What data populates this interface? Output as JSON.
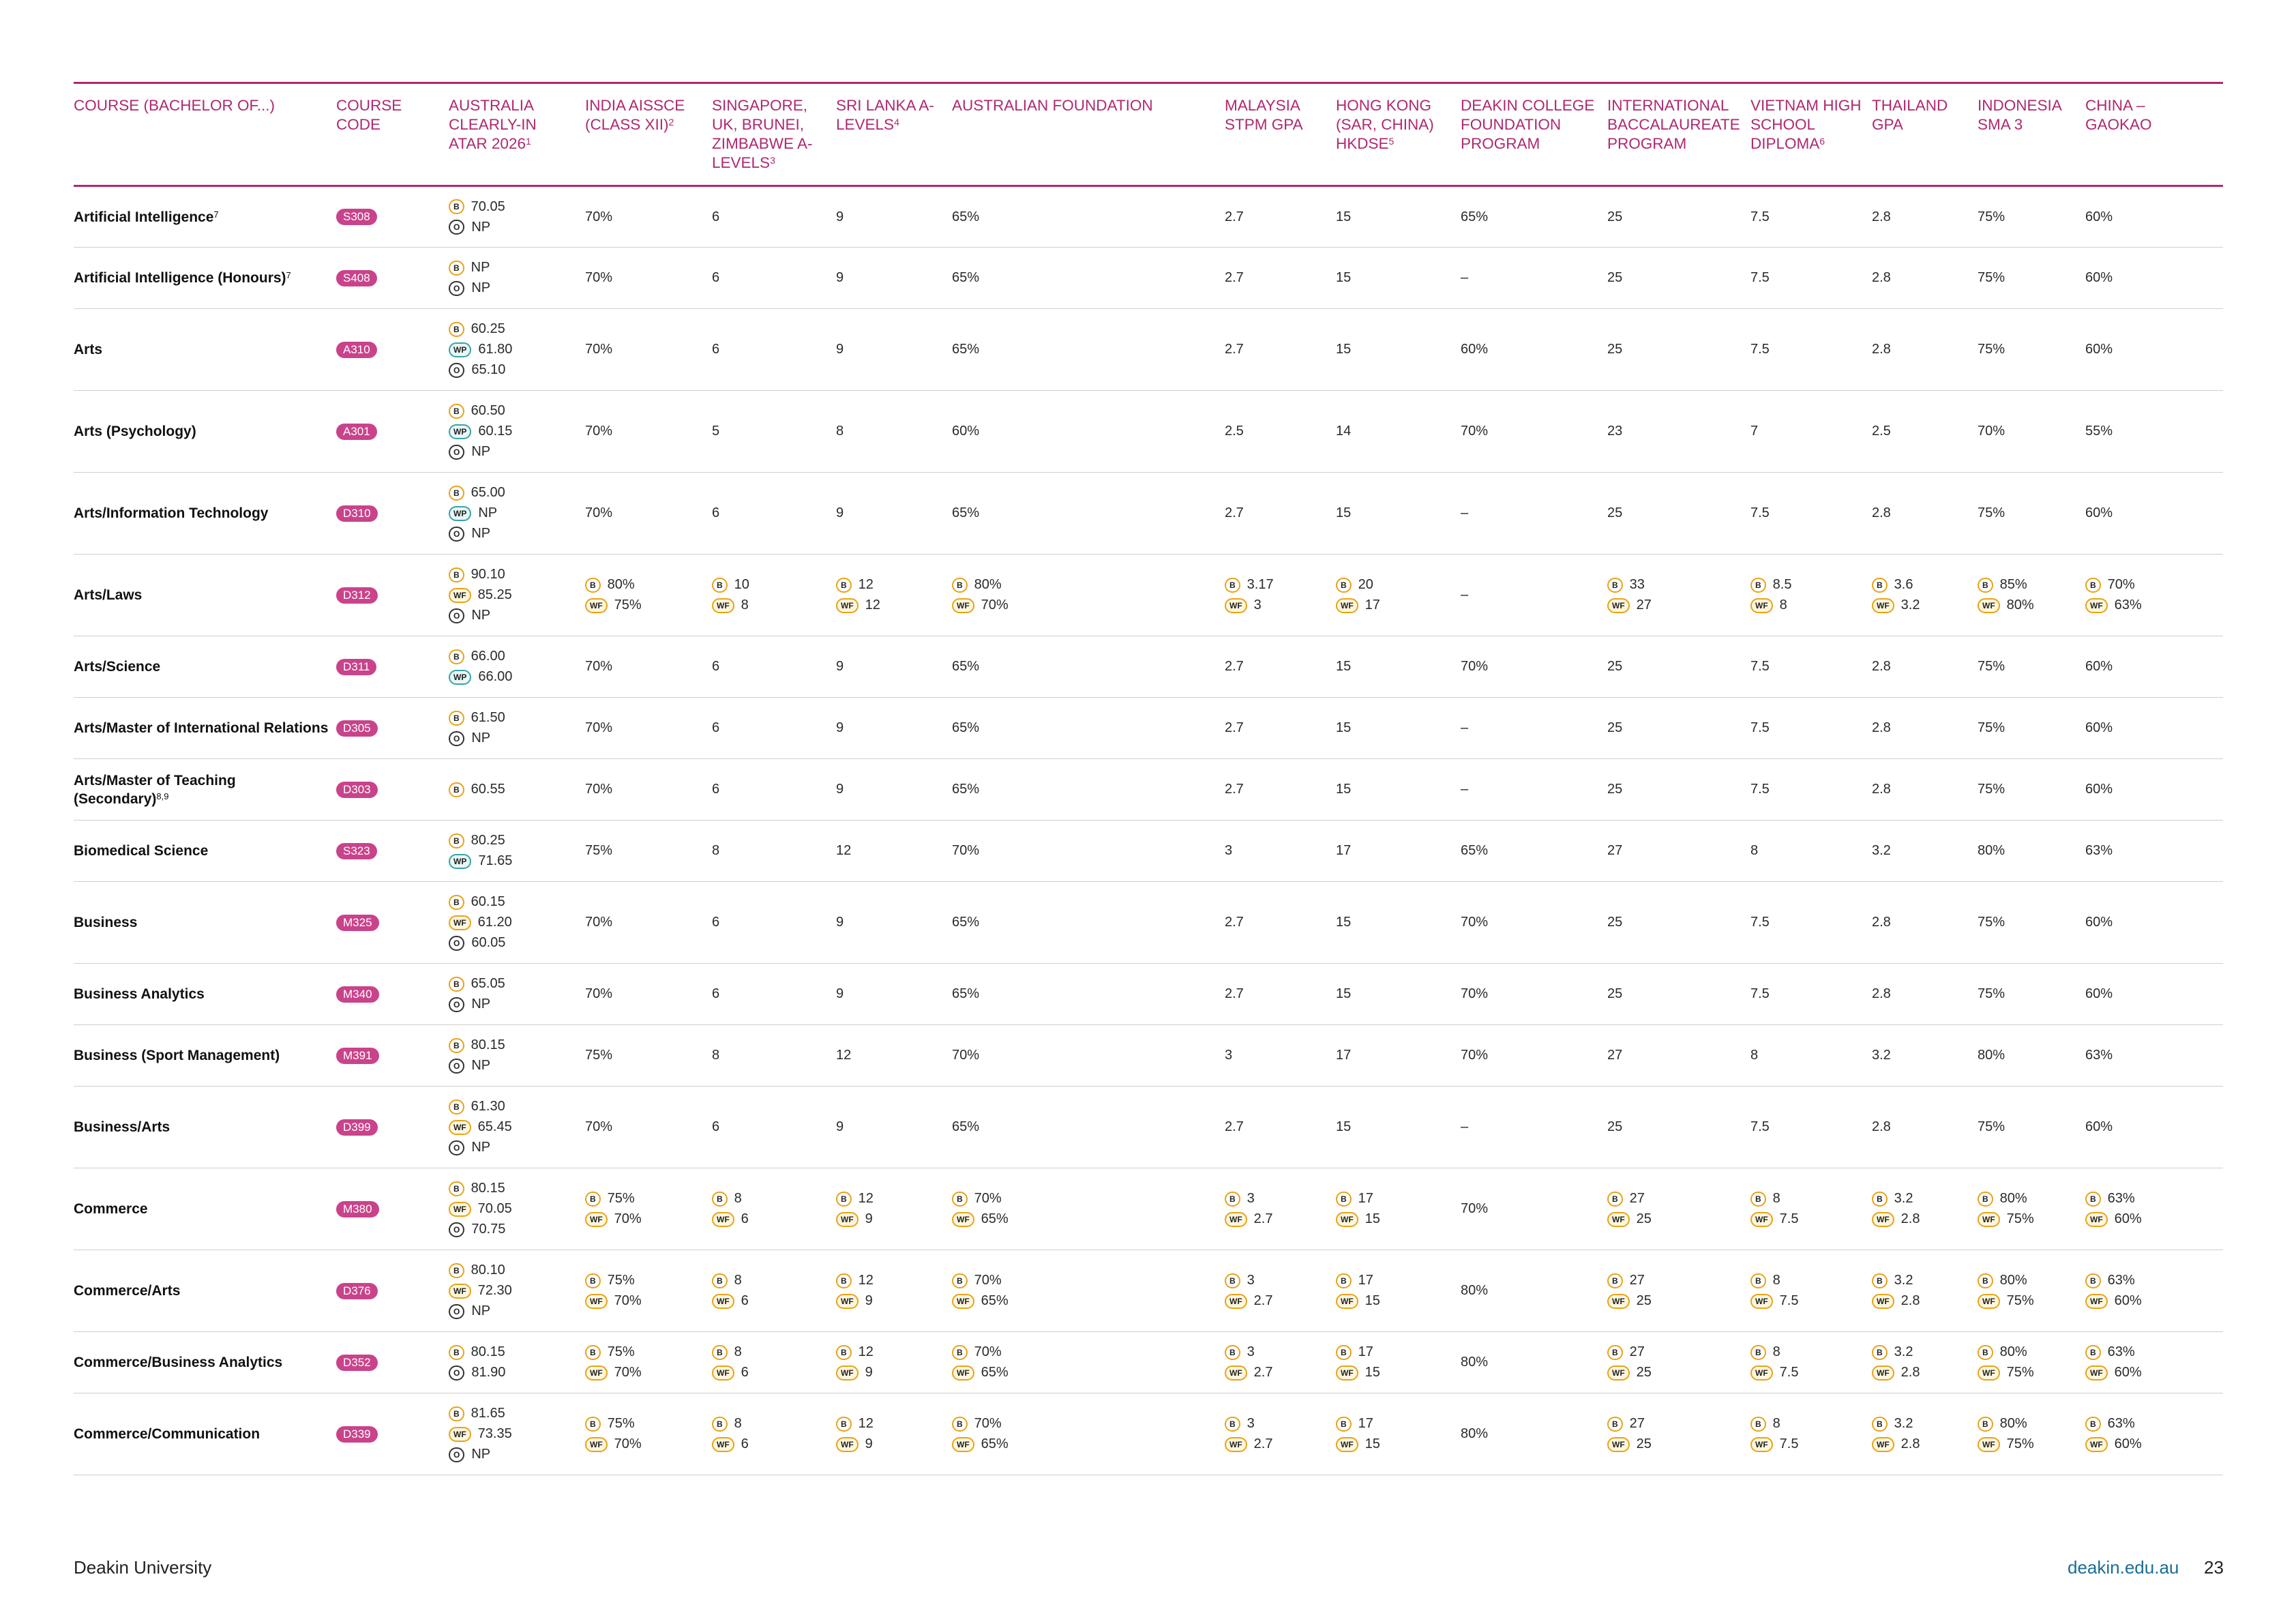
{
  "columns": [
    {
      "label": "COURSE (BACHELOR OF...)",
      "sup": ""
    },
    {
      "label": "COURSE CODE",
      "sup": ""
    },
    {
      "label": "AUSTRALIA CLEARLY-IN ATAR 2026",
      "sup": "1"
    },
    {
      "label": "INDIA AISSCE (CLASS XII)",
      "sup": "2"
    },
    {
      "label": "SINGAPORE, UK, BRUNEI, ZIMBABWE A-LEVELS",
      "sup": "3"
    },
    {
      "label": "SRI LANKA A-LEVELS",
      "sup": "4"
    },
    {
      "label": "AUSTRALIAN FOUNDATION",
      "sup": ""
    },
    {
      "label": "MALAYSIA STPM GPA",
      "sup": ""
    },
    {
      "label": "HONG KONG (SAR, CHINA) HKDSE",
      "sup": "5"
    },
    {
      "label": "DEAKIN COLLEGE FOUNDATION PROGRAM",
      "sup": ""
    },
    {
      "label": "INTERNATIONAL BACCALAUREATE PROGRAM",
      "sup": ""
    },
    {
      "label": "VIETNAM HIGH SCHOOL DIPLOMA",
      "sup": "6"
    },
    {
      "label": "THAILAND GPA",
      "sup": ""
    },
    {
      "label": "INDONESIA SMA 3",
      "sup": ""
    },
    {
      "label": "CHINA – GAOKAO",
      "sup": ""
    }
  ],
  "rows": [
    {
      "course": "Artificial Intelligence",
      "sup": "7",
      "code": "S308",
      "atar": [
        [
          "B",
          "70.05"
        ],
        [
          "O",
          "NP"
        ]
      ],
      "cells": [
        "70%",
        "6",
        "9",
        "65%",
        "2.7",
        "15",
        "65%",
        "25",
        "7.5",
        "2.8",
        "75%",
        "60%"
      ]
    },
    {
      "course": "Artificial Intelligence (Honours)",
      "sup": "7",
      "code": "S408",
      "atar": [
        [
          "B",
          "NP"
        ],
        [
          "O",
          "NP"
        ]
      ],
      "cells": [
        "70%",
        "6",
        "9",
        "65%",
        "2.7",
        "15",
        "–",
        "25",
        "7.5",
        "2.8",
        "75%",
        "60%"
      ]
    },
    {
      "course": "Arts",
      "sup": "",
      "code": "A310",
      "atar": [
        [
          "B",
          "60.25"
        ],
        [
          "WP",
          "61.80"
        ],
        [
          "O",
          "65.10"
        ]
      ],
      "cells": [
        "70%",
        "6",
        "9",
        "65%",
        "2.7",
        "15",
        "60%",
        "25",
        "7.5",
        "2.8",
        "75%",
        "60%"
      ]
    },
    {
      "course": "Arts (Psychology)",
      "sup": "",
      "code": "A301",
      "atar": [
        [
          "B",
          "60.50"
        ],
        [
          "WP",
          "60.15"
        ],
        [
          "O",
          "NP"
        ]
      ],
      "cells": [
        "70%",
        "5",
        "8",
        "60%",
        "2.5",
        "14",
        "70%",
        "23",
        "7",
        "2.5",
        "70%",
        "55%"
      ]
    },
    {
      "course": "Arts/Information Technology",
      "sup": "",
      "code": "D310",
      "atar": [
        [
          "B",
          "65.00"
        ],
        [
          "WP",
          "NP"
        ],
        [
          "O",
          "NP"
        ]
      ],
      "cells": [
        "70%",
        "6",
        "9",
        "65%",
        "2.7",
        "15",
        "–",
        "25",
        "7.5",
        "2.8",
        "75%",
        "60%"
      ]
    },
    {
      "course": "Arts/Laws",
      "sup": "",
      "code": "D312",
      "atar": [
        [
          "B",
          "90.10"
        ],
        [
          "WF",
          "85.25"
        ],
        [
          "O",
          "NP"
        ]
      ],
      "cells": [
        [
          [
            "B",
            "80%"
          ],
          [
            "WF",
            "75%"
          ]
        ],
        [
          [
            "B",
            "10"
          ],
          [
            "WF",
            "8"
          ]
        ],
        [
          [
            "B",
            "12"
          ],
          [
            "WF",
            "12"
          ]
        ],
        [
          [
            "B",
            "80%"
          ],
          [
            "WF",
            "70%"
          ]
        ],
        [
          [
            "B",
            "3.17"
          ],
          [
            "WF",
            "3"
          ]
        ],
        [
          [
            "B",
            "20"
          ],
          [
            "WF",
            "17"
          ]
        ],
        "–",
        [
          [
            "B",
            "33"
          ],
          [
            "WF",
            "27"
          ]
        ],
        [
          [
            "B",
            "8.5"
          ],
          [
            "WF",
            "8"
          ]
        ],
        [
          [
            "B",
            "3.6"
          ],
          [
            "WF",
            "3.2"
          ]
        ],
        [
          [
            "B",
            "85%"
          ],
          [
            "WF",
            "80%"
          ]
        ],
        [
          [
            "B",
            "70%"
          ],
          [
            "WF",
            "63%"
          ]
        ]
      ]
    },
    {
      "course": "Arts/Science",
      "sup": "",
      "code": "D311",
      "atar": [
        [
          "B",
          "66.00"
        ],
        [
          "WP",
          "66.00"
        ]
      ],
      "cells": [
        "70%",
        "6",
        "9",
        "65%",
        "2.7",
        "15",
        "70%",
        "25",
        "7.5",
        "2.8",
        "75%",
        "60%"
      ]
    },
    {
      "course": "Arts/Master of International Relations",
      "sup": "",
      "code": "D305",
      "atar": [
        [
          "B",
          "61.50"
        ],
        [
          "O",
          "NP"
        ]
      ],
      "cells": [
        "70%",
        "6",
        "9",
        "65%",
        "2.7",
        "15",
        "–",
        "25",
        "7.5",
        "2.8",
        "75%",
        "60%"
      ]
    },
    {
      "course": "Arts/Master of Teaching (Secondary)",
      "sup": "8,9",
      "code": "D303",
      "atar": [
        [
          "B",
          "60.55"
        ]
      ],
      "cells": [
        "70%",
        "6",
        "9",
        "65%",
        "2.7",
        "15",
        "–",
        "25",
        "7.5",
        "2.8",
        "75%",
        "60%"
      ]
    },
    {
      "course": "Biomedical Science",
      "sup": "",
      "code": "S323",
      "atar": [
        [
          "B",
          "80.25"
        ],
        [
          "WP",
          "71.65"
        ]
      ],
      "cells": [
        "75%",
        "8",
        "12",
        "70%",
        "3",
        "17",
        "65%",
        "27",
        "8",
        "3.2",
        "80%",
        "63%"
      ]
    },
    {
      "course": "Business",
      "sup": "",
      "code": "M325",
      "atar": [
        [
          "B",
          "60.15"
        ],
        [
          "WF",
          "61.20"
        ],
        [
          "O",
          "60.05"
        ]
      ],
      "cells": [
        "70%",
        "6",
        "9",
        "65%",
        "2.7",
        "15",
        "70%",
        "25",
        "7.5",
        "2.8",
        "75%",
        "60%"
      ]
    },
    {
      "course": "Business Analytics",
      "sup": "",
      "code": "M340",
      "atar": [
        [
          "B",
          "65.05"
        ],
        [
          "O",
          "NP"
        ]
      ],
      "cells": [
        "70%",
        "6",
        "9",
        "65%",
        "2.7",
        "15",
        "70%",
        "25",
        "7.5",
        "2.8",
        "75%",
        "60%"
      ]
    },
    {
      "course": "Business (Sport Management)",
      "sup": "",
      "code": "M391",
      "atar": [
        [
          "B",
          "80.15"
        ],
        [
          "O",
          "NP"
        ]
      ],
      "cells": [
        "75%",
        "8",
        "12",
        "70%",
        "3",
        "17",
        "70%",
        "27",
        "8",
        "3.2",
        "80%",
        "63%"
      ]
    },
    {
      "course": "Business/Arts",
      "sup": "",
      "code": "D399",
      "atar": [
        [
          "B",
          "61.30"
        ],
        [
          "WF",
          "65.45"
        ],
        [
          "O",
          "NP"
        ]
      ],
      "cells": [
        "70%",
        "6",
        "9",
        "65%",
        "2.7",
        "15",
        "–",
        "25",
        "7.5",
        "2.8",
        "75%",
        "60%"
      ]
    },
    {
      "course": "Commerce",
      "sup": "",
      "code": "M380",
      "atar": [
        [
          "B",
          "80.15"
        ],
        [
          "WF",
          "70.05"
        ],
        [
          "O",
          "70.75"
        ]
      ],
      "cells": [
        [
          [
            "B",
            "75%"
          ],
          [
            "WF",
            "70%"
          ]
        ],
        [
          [
            "B",
            "8"
          ],
          [
            "WF",
            "6"
          ]
        ],
        [
          [
            "B",
            "12"
          ],
          [
            "WF",
            "9"
          ]
        ],
        [
          [
            "B",
            "70%"
          ],
          [
            "WF",
            "65%"
          ]
        ],
        [
          [
            "B",
            "3"
          ],
          [
            "WF",
            "2.7"
          ]
        ],
        [
          [
            "B",
            "17"
          ],
          [
            "WF",
            "15"
          ]
        ],
        "70%",
        [
          [
            "B",
            "27"
          ],
          [
            "WF",
            "25"
          ]
        ],
        [
          [
            "B",
            "8"
          ],
          [
            "WF",
            "7.5"
          ]
        ],
        [
          [
            "B",
            "3.2"
          ],
          [
            "WF",
            "2.8"
          ]
        ],
        [
          [
            "B",
            "80%"
          ],
          [
            "WF",
            "75%"
          ]
        ],
        [
          [
            "B",
            "63%"
          ],
          [
            "WF",
            "60%"
          ]
        ]
      ]
    },
    {
      "course": "Commerce/Arts",
      "sup": "",
      "code": "D376",
      "atar": [
        [
          "B",
          "80.10"
        ],
        [
          "WF",
          "72.30"
        ],
        [
          "O",
          "NP"
        ]
      ],
      "cells": [
        [
          [
            "B",
            "75%"
          ],
          [
            "WF",
            "70%"
          ]
        ],
        [
          [
            "B",
            "8"
          ],
          [
            "WF",
            "6"
          ]
        ],
        [
          [
            "B",
            "12"
          ],
          [
            "WF",
            "9"
          ]
        ],
        [
          [
            "B",
            "70%"
          ],
          [
            "WF",
            "65%"
          ]
        ],
        [
          [
            "B",
            "3"
          ],
          [
            "WF",
            "2.7"
          ]
        ],
        [
          [
            "B",
            "17"
          ],
          [
            "WF",
            "15"
          ]
        ],
        "80%",
        [
          [
            "B",
            "27"
          ],
          [
            "WF",
            "25"
          ]
        ],
        [
          [
            "B",
            "8"
          ],
          [
            "WF",
            "7.5"
          ]
        ],
        [
          [
            "B",
            "3.2"
          ],
          [
            "WF",
            "2.8"
          ]
        ],
        [
          [
            "B",
            "80%"
          ],
          [
            "WF",
            "75%"
          ]
        ],
        [
          [
            "B",
            "63%"
          ],
          [
            "WF",
            "60%"
          ]
        ]
      ]
    },
    {
      "course": "Commerce/Business Analytics",
      "sup": "",
      "code": "D352",
      "atar": [
        [
          "B",
          "80.15"
        ],
        [
          "O",
          "81.90"
        ]
      ],
      "cells": [
        [
          [
            "B",
            "75%"
          ],
          [
            "WF",
            "70%"
          ]
        ],
        [
          [
            "B",
            "8"
          ],
          [
            "WF",
            "6"
          ]
        ],
        [
          [
            "B",
            "12"
          ],
          [
            "WF",
            "9"
          ]
        ],
        [
          [
            "B",
            "70%"
          ],
          [
            "WF",
            "65%"
          ]
        ],
        [
          [
            "B",
            "3"
          ],
          [
            "WF",
            "2.7"
          ]
        ],
        [
          [
            "B",
            "17"
          ],
          [
            "WF",
            "15"
          ]
        ],
        "80%",
        [
          [
            "B",
            "27"
          ],
          [
            "WF",
            "25"
          ]
        ],
        [
          [
            "B",
            "8"
          ],
          [
            "WF",
            "7.5"
          ]
        ],
        [
          [
            "B",
            "3.2"
          ],
          [
            "WF",
            "2.8"
          ]
        ],
        [
          [
            "B",
            "80%"
          ],
          [
            "WF",
            "75%"
          ]
        ],
        [
          [
            "B",
            "63%"
          ],
          [
            "WF",
            "60%"
          ]
        ]
      ]
    },
    {
      "course": "Commerce/Communication",
      "sup": "",
      "code": "D339",
      "atar": [
        [
          "B",
          "81.65"
        ],
        [
          "WF",
          "73.35"
        ],
        [
          "O",
          "NP"
        ]
      ],
      "cells": [
        [
          [
            "B",
            "75%"
          ],
          [
            "WF",
            "70%"
          ]
        ],
        [
          [
            "B",
            "8"
          ],
          [
            "WF",
            "6"
          ]
        ],
        [
          [
            "B",
            "12"
          ],
          [
            "WF",
            "9"
          ]
        ],
        [
          [
            "B",
            "70%"
          ],
          [
            "WF",
            "65%"
          ]
        ],
        [
          [
            "B",
            "3"
          ],
          [
            "WF",
            "2.7"
          ]
        ],
        [
          [
            "B",
            "17"
          ],
          [
            "WF",
            "15"
          ]
        ],
        "80%",
        [
          [
            "B",
            "27"
          ],
          [
            "WF",
            "25"
          ]
        ],
        [
          [
            "B",
            "8"
          ],
          [
            "WF",
            "7.5"
          ]
        ],
        [
          [
            "B",
            "3.2"
          ],
          [
            "WF",
            "2.8"
          ]
        ],
        [
          [
            "B",
            "80%"
          ],
          [
            "WF",
            "75%"
          ]
        ],
        [
          [
            "B",
            "63%"
          ],
          [
            "WF",
            "60%"
          ]
        ]
      ]
    }
  ],
  "tag_labels": {
    "B": "B",
    "WF": "WF",
    "WP": "WP",
    "O": "O"
  },
  "footer": {
    "left": "Deakin University",
    "url": "deakin.edu.au",
    "page": "23"
  },
  "colors": {
    "accent": "#b0286e",
    "pill": "#c9438b",
    "tag_b": "#e8a317",
    "tag_wp": "#3aa2a8",
    "link": "#1a6e93"
  }
}
